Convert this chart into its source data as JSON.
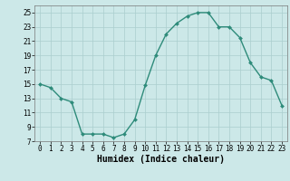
{
  "x": [
    0,
    1,
    2,
    3,
    4,
    5,
    6,
    7,
    8,
    9,
    10,
    11,
    12,
    13,
    14,
    15,
    16,
    17,
    18,
    19,
    20,
    21,
    22,
    23
  ],
  "y": [
    15,
    14.5,
    13,
    12.5,
    8,
    8,
    8,
    7.5,
    8,
    10,
    14.8,
    19,
    22,
    23.5,
    24.5,
    25,
    25,
    23,
    23,
    21.5,
    18,
    16,
    15.5,
    12
  ],
  "line_color": "#2e8b7a",
  "marker": "D",
  "marker_size": 2,
  "line_width": 1.0,
  "xlabel": "Humidex (Indice chaleur)",
  "xlim": [
    -0.5,
    23.5
  ],
  "ylim": [
    7,
    26
  ],
  "yticks": [
    7,
    9,
    11,
    13,
    15,
    17,
    19,
    21,
    23,
    25
  ],
  "xticks": [
    0,
    1,
    2,
    3,
    4,
    5,
    6,
    7,
    8,
    9,
    10,
    11,
    12,
    13,
    14,
    15,
    16,
    17,
    18,
    19,
    20,
    21,
    22,
    23
  ],
  "bg_color": "#cce8e8",
  "grid_color": "#aacece",
  "tick_fontsize": 5.5,
  "xlabel_fontsize": 7
}
